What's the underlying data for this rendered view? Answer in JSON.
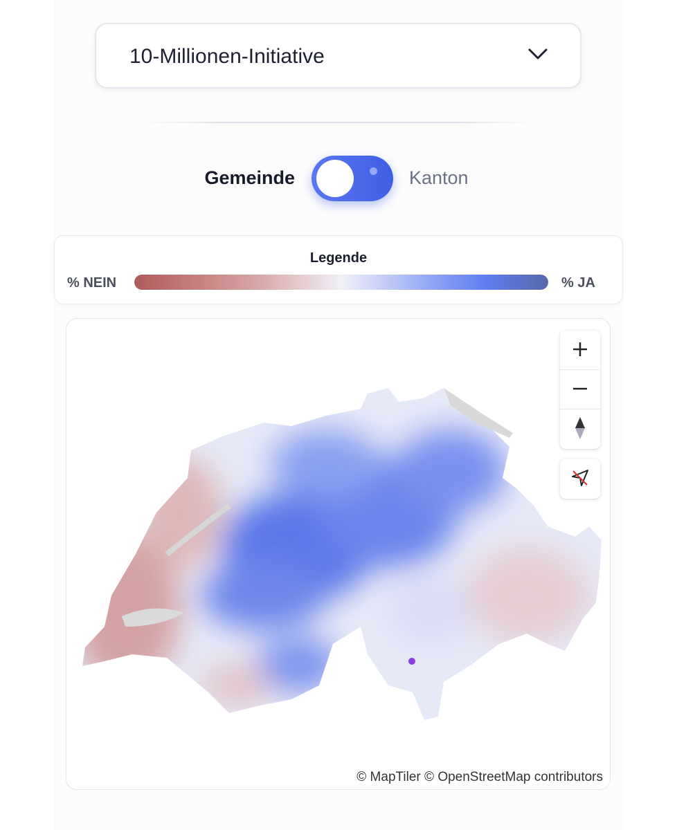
{
  "select": {
    "label": "10-Millionen-Initiative"
  },
  "toggle": {
    "left": "Gemeinde",
    "right": "Kanton"
  },
  "legend": {
    "title": "Legende",
    "low": "% NEIN",
    "high": "% JA"
  },
  "map": {
    "attribution": "© MapTiler © OpenStreetMap contributors"
  }
}
